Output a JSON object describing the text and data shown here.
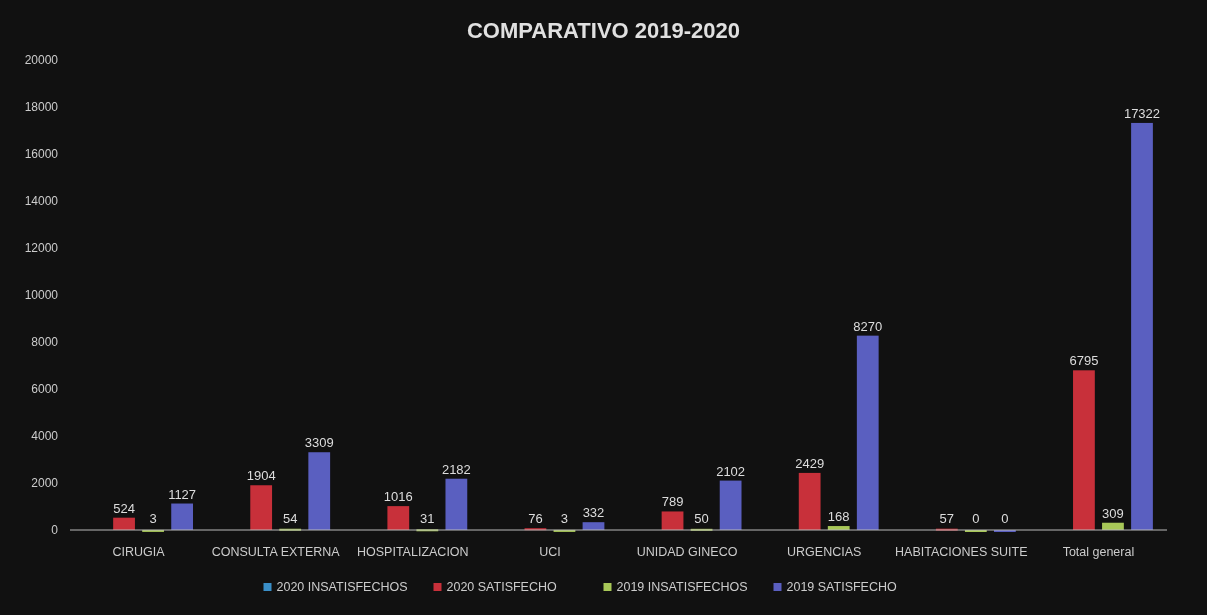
{
  "chart_data": {
    "type": "bar",
    "title": "COMPARATIVO 2019-2020",
    "categories": [
      "CIRUGIA",
      "CONSULTA EXTERNA",
      "HOSPITALIZACION",
      "UCI",
      "UNIDAD GINECO",
      "URGENCIAS",
      "HABITACIONES SUITE",
      "Total general"
    ],
    "series": [
      {
        "name": "2020 INSATISFECHOS",
        "color": "#3a8fc8",
        "values": [
          null,
          null,
          null,
          null,
          null,
          null,
          null,
          null
        ]
      },
      {
        "name": "2020 SATISFECHO",
        "color": "#c8303a",
        "values": [
          524,
          1904,
          1016,
          76,
          789,
          2429,
          57,
          6795
        ]
      },
      {
        "name": "2019 INSATISFECHOS",
        "color": "#a8c858",
        "values": [
          3,
          54,
          31,
          3,
          50,
          168,
          0,
          309
        ]
      },
      {
        "name": "2019 SATISFECHO",
        "color": "#5a5fc0",
        "values": [
          1127,
          3309,
          2182,
          332,
          2102,
          8270,
          0,
          17322
        ]
      }
    ],
    "ylim": [
      0,
      20000
    ],
    "yticks": [
      0,
      2000,
      4000,
      6000,
      8000,
      10000,
      12000,
      14000,
      16000,
      18000,
      20000
    ],
    "data_labels": true,
    "legend": "bottom"
  }
}
